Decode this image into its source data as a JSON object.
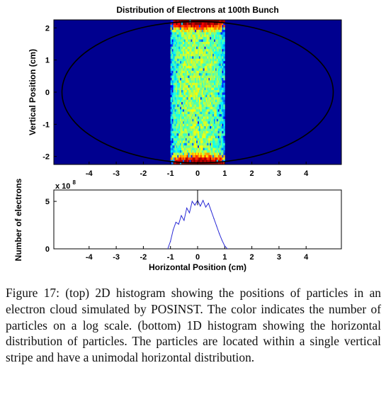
{
  "chart_data": [
    {
      "type": "heatmap",
      "title": "Distribution of Electrons at 100th Bunch",
      "xlabel": "",
      "ylabel": "Vertical Position (cm)",
      "xlim": [
        -5.3,
        5.3
      ],
      "ylim": [
        -2.25,
        2.25
      ],
      "x_ticks": [
        -4,
        -3,
        -2,
        -1,
        0,
        1,
        2,
        3,
        4
      ],
      "y_ticks": [
        -2,
        -1,
        0,
        1,
        2
      ],
      "stripe_x_range": [
        -1.0,
        1.0
      ],
      "boundary": {
        "shape": "ellipse",
        "center": [
          0,
          0
        ],
        "semi_axis_x": 5.0,
        "semi_axis_y": 2.2
      },
      "colormap": "jet",
      "background_color": "#00008f"
    },
    {
      "type": "line",
      "title": "",
      "xlabel": "Horizontal Position (cm)",
      "ylabel": "Number of electrons",
      "y_scale_label": "x 10",
      "y_scale_exponent": "8",
      "xlim": [
        -5.3,
        5.3
      ],
      "ylim": [
        0,
        6.2
      ],
      "x_ticks": [
        -4,
        -3,
        -2,
        -1,
        0,
        1,
        2,
        3,
        4
      ],
      "y_ticks": [
        0,
        5
      ],
      "series": [
        {
          "color": "#2b2bd6",
          "x": [
            -1.1,
            -1.0,
            -0.9,
            -0.8,
            -0.7,
            -0.6,
            -0.5,
            -0.4,
            -0.3,
            -0.2,
            -0.1,
            0.0,
            0.1,
            0.2,
            0.3,
            0.4,
            0.5,
            0.6,
            0.7,
            0.8,
            0.9,
            1.0,
            1.1
          ],
          "y": [
            0.0,
            0.8,
            2.0,
            2.8,
            2.6,
            3.5,
            3.0,
            4.3,
            3.8,
            5.0,
            4.6,
            5.1,
            4.5,
            5.1,
            4.4,
            4.8,
            4.0,
            3.2,
            2.4,
            1.6,
            0.9,
            0.3,
            0.0
          ]
        }
      ]
    }
  ],
  "caption": "Figure 17: (top) 2D histogram showing the positions of particles in an electron cloud simulated by POSINST. The color indicates the number of particles on a log scale. (bottom) 1D histogram showing the horizontal distribution of particles. The particles are located within a single vertical stripe and have a unimodal horizontal distribution."
}
